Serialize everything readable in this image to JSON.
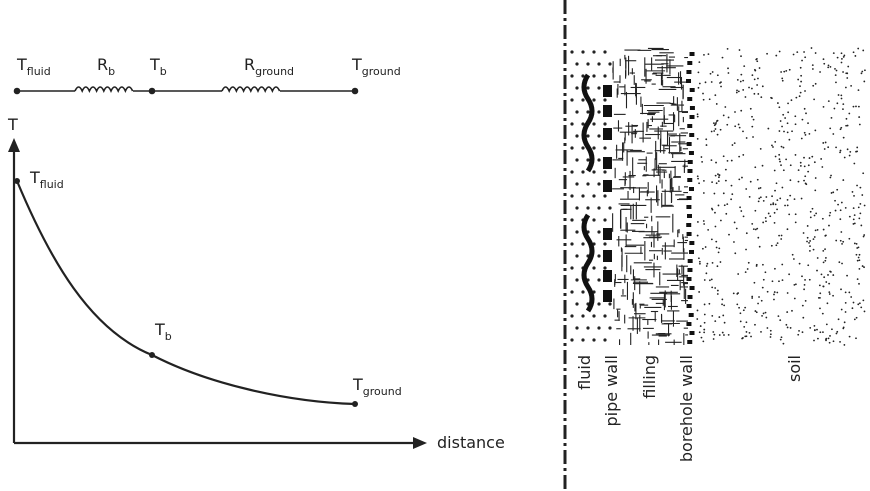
{
  "circuit": {
    "nodes": [
      {
        "symbol": "T",
        "sub": "fluid"
      },
      {
        "symbol": "T",
        "sub": "b"
      },
      {
        "symbol": "T",
        "sub": "ground"
      }
    ],
    "resistors": [
      {
        "symbol": "R",
        "sub": "b"
      },
      {
        "symbol": "R",
        "sub": "ground"
      }
    ]
  },
  "graph": {
    "y_axis": "T",
    "x_axis": "distance",
    "points": [
      {
        "symbol": "T",
        "sub": "fluid"
      },
      {
        "symbol": "T",
        "sub": "b"
      },
      {
        "symbol": "T",
        "sub": "ground"
      }
    ]
  },
  "section": {
    "layers": [
      "fluid",
      "pipe wall",
      "filling",
      "borehole wall",
      "soil"
    ]
  }
}
